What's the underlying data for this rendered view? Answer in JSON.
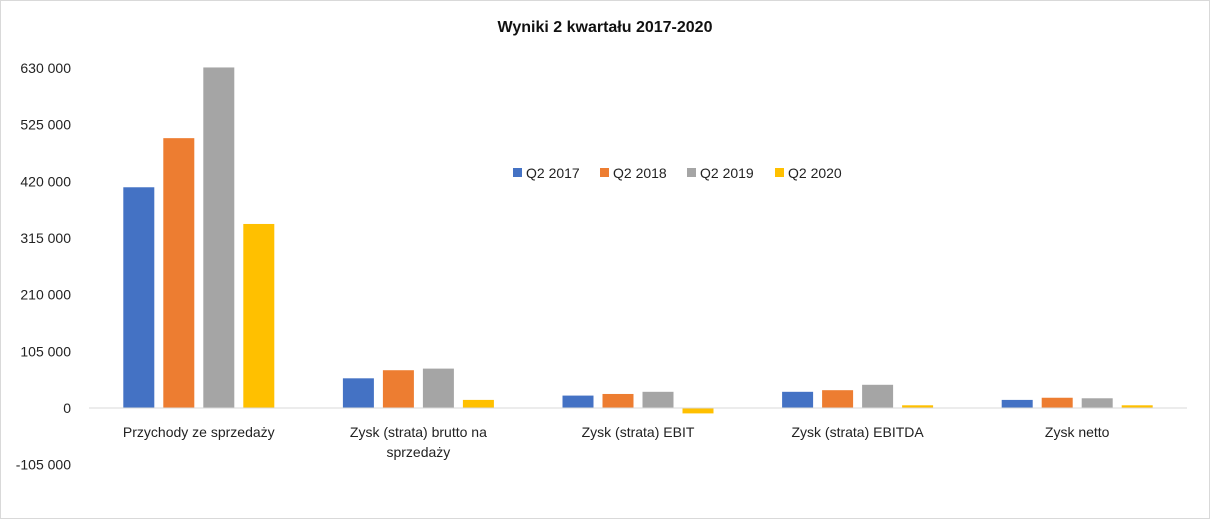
{
  "chart_data": {
    "type": "bar",
    "title": "Wyniki 2 kwartału 2017-2020",
    "xlabel": "",
    "ylabel": "",
    "categories": [
      [
        "Przychody ze sprzedaży"
      ],
      [
        "Zysk (strata) brutto na",
        "sprzedaży"
      ],
      [
        "Zysk (strata) EBIT"
      ],
      [
        "Zysk (strata) EBITDA"
      ],
      [
        "Zysk netto"
      ]
    ],
    "series": [
      {
        "name": "Q2 2017",
        "color": "#4472c4",
        "values": [
          409000,
          55000,
          23000,
          30000,
          15000
        ]
      },
      {
        "name": "Q2 2018",
        "color": "#ed7d31",
        "values": [
          500000,
          70000,
          26000,
          33000,
          19000
        ]
      },
      {
        "name": "Q2 2019",
        "color": "#a5a5a5",
        "values": [
          631000,
          73000,
          30000,
          43000,
          18000
        ]
      },
      {
        "name": "Q2 2020",
        "color": "#ffc000",
        "values": [
          341000,
          15000,
          -10000,
          5000,
          5000
        ]
      }
    ],
    "yticks": [
      630000,
      525000,
      420000,
      315000,
      210000,
      105000,
      0,
      -105000
    ],
    "ytick_labels": [
      "630 000",
      "525 000",
      "420 000",
      "315 000",
      "210 000",
      "105 000",
      "0",
      "-105 000"
    ],
    "ylim": [
      -105000,
      630000
    ],
    "grid": false,
    "legend_position": "inside-center-top"
  }
}
